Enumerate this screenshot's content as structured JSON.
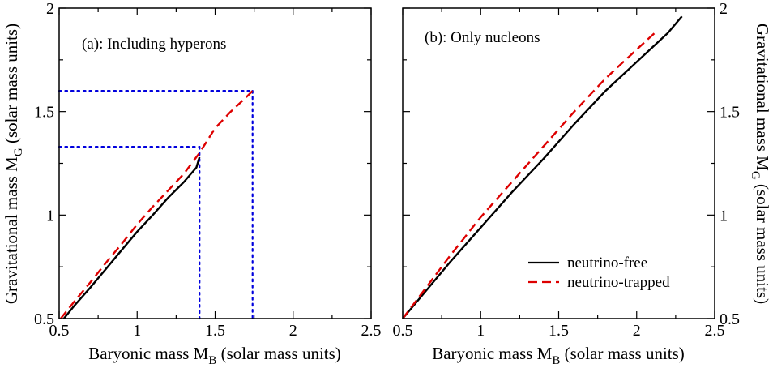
{
  "chart_data": [
    {
      "type": "line",
      "panel": "left",
      "annotation": "(a): Including hyperons",
      "xlabel_main": "Baryonic mass M",
      "xlabel_sub": "B",
      "xlabel_tail": " (solar mass units)",
      "ylabel_main": "Gravitational mass M",
      "ylabel_sub": "G",
      "ylabel_tail": " (solar mass units)",
      "xlim": [
        0.5,
        2.5
      ],
      "ylim": [
        0.5,
        2.0
      ],
      "xticks": [
        0.5,
        1,
        1.5,
        2,
        2.5
      ],
      "xtick_labels": [
        "0.5",
        "1",
        "1.5",
        "2",
        "2.5"
      ],
      "yticks": [
        0.5,
        1,
        1.5,
        2
      ],
      "ytick_labels": [
        "0.5",
        "1",
        "1.5",
        "2"
      ],
      "series": [
        {
          "name": "neutrino-free",
          "color": "#000000",
          "style": "solid",
          "x": [
            0.53,
            0.6,
            0.7,
            0.8,
            0.9,
            1.0,
            1.1,
            1.2,
            1.3,
            1.38,
            1.4
          ],
          "y": [
            0.5,
            0.565,
            0.65,
            0.74,
            0.83,
            0.92,
            1.0,
            1.085,
            1.16,
            1.23,
            1.28
          ]
        },
        {
          "name": "neutrino-trapped",
          "color": "#dd0000",
          "style": "dashed",
          "x": [
            0.51,
            0.6,
            0.7,
            0.8,
            0.9,
            1.0,
            1.1,
            1.2,
            1.3,
            1.4,
            1.5,
            1.6,
            1.7,
            1.74
          ],
          "y": [
            0.5,
            0.585,
            0.675,
            0.77,
            0.86,
            0.955,
            1.04,
            1.12,
            1.2,
            1.3,
            1.42,
            1.5,
            1.57,
            1.6
          ]
        }
      ],
      "reference_lines": [
        {
          "x": 1.4,
          "y": 1.33,
          "color": "#0000dd",
          "style": "dotted"
        },
        {
          "x": 1.74,
          "y": 1.6,
          "color": "#0000dd",
          "style": "dotted"
        }
      ]
    },
    {
      "type": "line",
      "panel": "right",
      "annotation": "(b): Only nucleons",
      "xlabel_main": "Baryonic mass M",
      "xlabel_sub": "B",
      "xlabel_tail": " (solar mass units)",
      "ylabel_main": "Gravitational mass M",
      "ylabel_sub": "G",
      "ylabel_tail": " (solar mass units)",
      "xlim": [
        0.5,
        2.5
      ],
      "ylim": [
        0.5,
        2.0
      ],
      "xticks": [
        0.5,
        1,
        1.5,
        2,
        2.5
      ],
      "xtick_labels": [
        "0.5",
        "1",
        "1.5",
        "2",
        "2.5"
      ],
      "yticks": [
        0.5,
        1,
        1.5,
        2
      ],
      "ytick_labels": [
        "0.5",
        "1",
        "1.5",
        "2"
      ],
      "series": [
        {
          "name": "neutrino-free",
          "color": "#000000",
          "style": "solid",
          "x": [
            0.5,
            0.6,
            0.8,
            1.0,
            1.2,
            1.4,
            1.6,
            1.8,
            2.0,
            2.2,
            2.29
          ],
          "y": [
            0.5,
            0.59,
            0.77,
            0.94,
            1.11,
            1.27,
            1.44,
            1.6,
            1.74,
            1.88,
            1.96
          ]
        },
        {
          "name": "neutrino-trapped",
          "color": "#dd0000",
          "style": "dashed",
          "x": [
            0.5,
            0.6,
            0.8,
            1.0,
            1.2,
            1.4,
            1.6,
            1.8,
            2.0,
            2.13
          ],
          "y": [
            0.5,
            0.6,
            0.8,
            0.99,
            1.16,
            1.33,
            1.5,
            1.66,
            1.8,
            1.89
          ]
        }
      ],
      "legend": {
        "position": "bottom-right",
        "entries": [
          {
            "label": "neutrino-free",
            "color": "#000000",
            "style": "solid"
          },
          {
            "label": "neutrino-trapped",
            "color": "#dd0000",
            "style": "dashed"
          }
        ]
      }
    }
  ]
}
